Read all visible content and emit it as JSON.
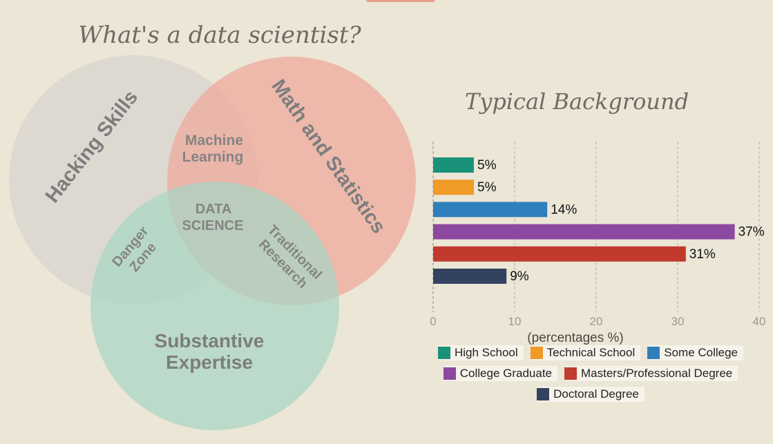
{
  "venn": {
    "title": "What's a data scientist?",
    "circles": {
      "hacking": {
        "label": "Hacking Skills",
        "color": "#d9d6cf"
      },
      "math": {
        "label": "Math and Statistics",
        "color": "#eea89a"
      },
      "substantive": {
        "label_line1": "Substantive",
        "label_line2": "Expertise",
        "color": "#a8d6c3"
      }
    },
    "overlaps": {
      "machine_learning": {
        "line1": "Machine",
        "line2": "Learning"
      },
      "data_science": {
        "line1": "DATA",
        "line2": "SCIENCE"
      },
      "danger_zone": {
        "line1": "Danger",
        "line2": "Zone"
      },
      "traditional_research": {
        "line1": "Traditional",
        "line2": "Research"
      }
    }
  },
  "chart_data": {
    "type": "bar",
    "orientation": "horizontal",
    "title": "Typical Background",
    "xlabel": "(percentages %)",
    "ylabel": "",
    "xlim": [
      0,
      40
    ],
    "xticks": [
      "0",
      "10",
      "20",
      "30",
      "40"
    ],
    "grid": true,
    "legend_position": "bottom",
    "categories": [
      "High School",
      "Technical School",
      "Some College",
      "College Graduate",
      "Masters/Professional Degree",
      "Doctoral Degree"
    ],
    "values": [
      5,
      5,
      14,
      37,
      31,
      9
    ],
    "value_labels": [
      "5%",
      "5%",
      "14%",
      "37%",
      "31%",
      "9%"
    ],
    "colors": [
      "#1a9279",
      "#f09a27",
      "#2f7fbc",
      "#8d48a0",
      "#c13a2d",
      "#33435f"
    ]
  }
}
